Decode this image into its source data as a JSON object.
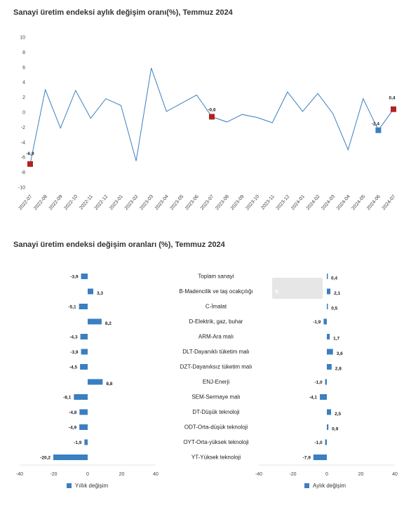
{
  "chart1_title": "Sanayi üretim endeksi aylık değişim oranı(%), Temmuz 2024",
  "chart2_title": "Sanayi üretim endeksi değişim oranları (%), Temmuz 2024",
  "colors": {
    "line": "#3a7fc1",
    "marker": "#b22222",
    "bar": "#3a7fc1"
  },
  "chart_data": [
    {
      "type": "line",
      "title": "Sanayi üretim endeksi aylık değişim oranı(%), Temmuz 2024",
      "x": [
        "2022-07",
        "2022-08",
        "2022-09",
        "2022-10",
        "2022-11",
        "2022-12",
        "2023-01",
        "2023-02",
        "2023-03",
        "2023-04",
        "2023-05",
        "2023-06",
        "2023-07",
        "2023-08",
        "2023-09",
        "2023-10",
        "2023-11",
        "2023-12",
        "2024-01",
        "2024-02",
        "2024-03",
        "2024-04",
        "2024-05",
        "2024-06",
        "2024-07"
      ],
      "values": [
        -6.9,
        3.0,
        -2.1,
        2.9,
        -0.8,
        1.8,
        0.9,
        -6.5,
        5.9,
        0.1,
        1.2,
        2.3,
        -0.6,
        -1.3,
        -0.3,
        -0.7,
        -1.4,
        2.7,
        0.1,
        2.5,
        -0.2,
        -5.0,
        1.8,
        -2.4,
        0.4
      ],
      "highlighted": [
        {
          "x": "2022-07",
          "label": "-6,9"
        },
        {
          "x": "2023-07",
          "label": "-0,6"
        },
        {
          "x": "2024-06",
          "label": "-2,4"
        },
        {
          "x": "2024-07",
          "label": "0,4"
        }
      ],
      "ylim": [
        -10,
        10
      ],
      "yticks": [
        -10,
        -8,
        -6,
        -4,
        -2,
        0,
        2,
        4,
        6,
        8,
        10
      ],
      "grid": false
    },
    {
      "type": "bar",
      "orientation": "horizontal",
      "title": "Sanayi üretim endeksi değişim oranları (%), Temmuz 2024",
      "categories": [
        "Toplam sanayi",
        "B-Madencilik ve taş ocakçılığı",
        "C-İmalat",
        "D-Elektrik, gaz, buhar",
        "ARM-Ara malı",
        "DLT-Dayanıklı tüketim malı",
        "DZT-Dayanıksız tüketim malı",
        "ENJ-Enerji",
        "SEM-Sermaye malı",
        "DT-Düşük teknoloji",
        "ODT-Orta-düşük teknoloji",
        "OYT-Orta-yüksek teknoloji",
        "YT-Yüksek teknoloji"
      ],
      "series": [
        {
          "name": "Yıllık değişim",
          "values": [
            -3.9,
            3.3,
            -5.1,
            8.2,
            -4.3,
            -3.9,
            -4.5,
            8.8,
            -8.1,
            -4.8,
            -4.9,
            -1.9,
            -20.2
          ],
          "labels": [
            "-3,9",
            "3,3",
            "-5,1",
            "8,2",
            "-4,3",
            "-3,9",
            "-4,5",
            "8,8",
            "-8,1",
            "-4,8",
            "-4,9",
            "-1,9",
            "-20,2"
          ]
        },
        {
          "name": "Aylık değişim",
          "values": [
            0.4,
            2.1,
            0.5,
            -1.9,
            1.7,
            3.6,
            2.8,
            -1.0,
            -4.1,
            2.5,
            0.9,
            -1.0,
            -7.9
          ],
          "labels": [
            "0,4",
            "2,1",
            "0,5",
            "-1,9",
            "1,7",
            "3,6",
            "2,8",
            "-1,0",
            "-4,1",
            "2,5",
            "0,9",
            "-1,0",
            "-7,9"
          ]
        }
      ],
      "xlim": [
        -40,
        40
      ],
      "xticks": [
        -40,
        -20,
        0,
        20,
        40
      ]
    }
  ]
}
